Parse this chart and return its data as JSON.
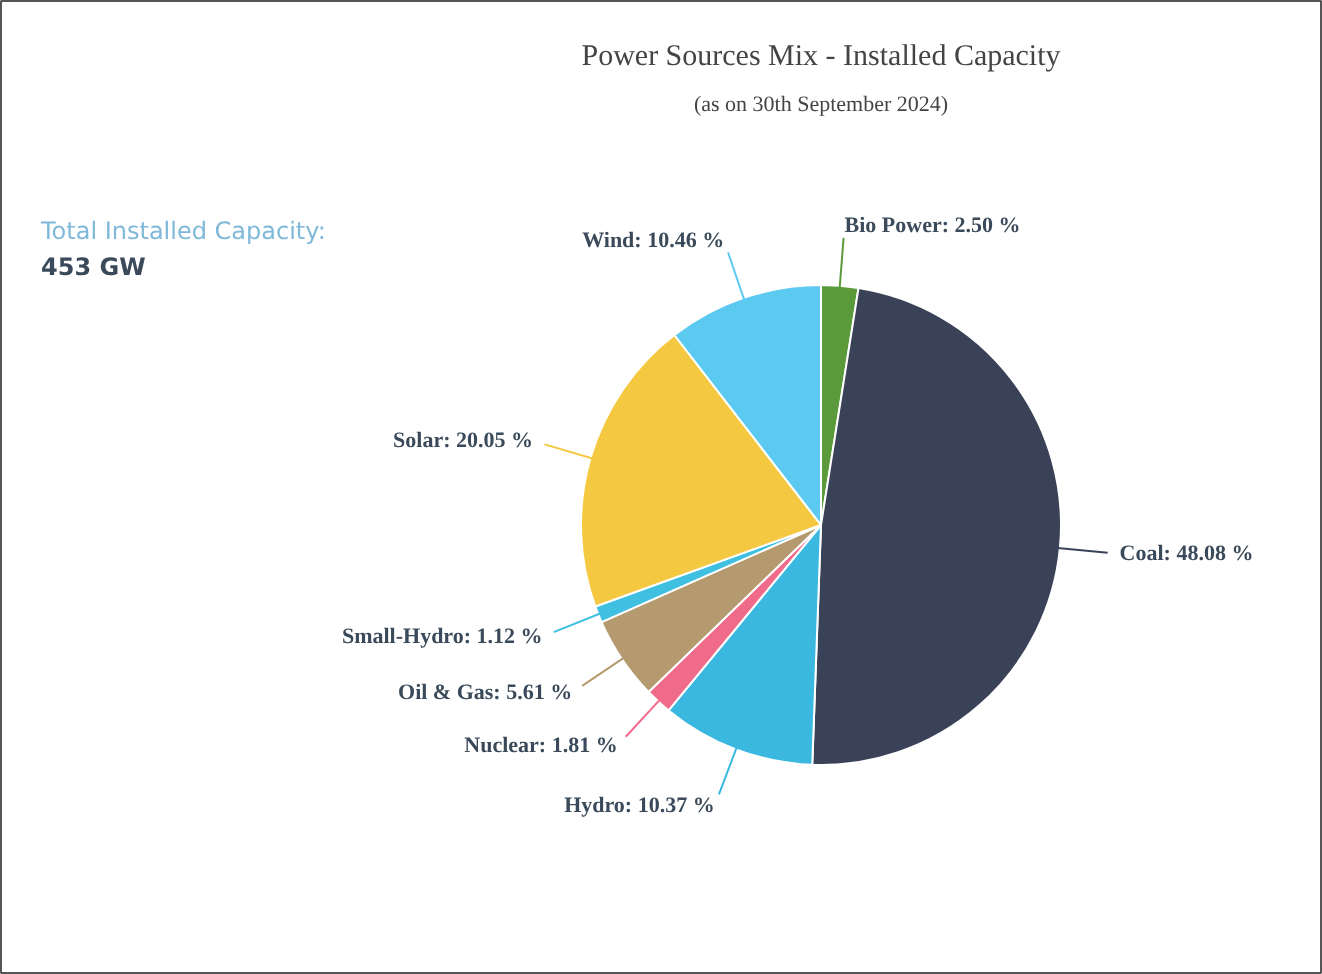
{
  "chart_data": {
    "type": "pie",
    "title": "Power Sources Mix - Installed Capacity",
    "subtitle": "(as on 30th September 2024)",
    "annotations": [
      "Total Installed Capacity:",
      "453 GW"
    ],
    "categories": [
      "Bio Power",
      "Coal",
      "Hydro",
      "Nuclear",
      "Oil & Gas",
      "Small-Hydro",
      "Solar",
      "Wind"
    ],
    "values": [
      2.5,
      48.08,
      10.37,
      1.81,
      5.61,
      1.12,
      20.05,
      10.46
    ],
    "value_labels": [
      "2.50 %",
      "48.08 %",
      "10.37 %",
      "1.81 %",
      "5.61 %",
      "1.12 %",
      "20.05 %",
      "10.46 %"
    ],
    "colors": [
      "#5a9a3a",
      "#3a4258",
      "#3bb8e0",
      "#f06a8a",
      "#b59a70",
      "#40c0e0",
      "#f5c842",
      "#5ccaf0"
    ]
  }
}
